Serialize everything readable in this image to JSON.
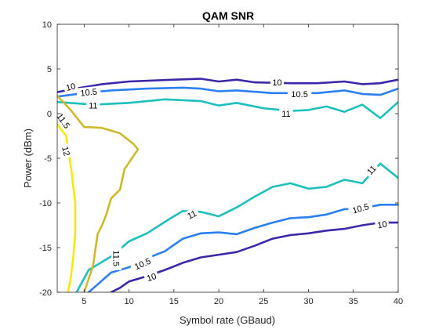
{
  "chart_data": {
    "type": "contour",
    "title": "QAM SNR",
    "xlabel": "Symbol rate (GBaud)",
    "ylabel": "Power (dBm)",
    "xlim": [
      2,
      40
    ],
    "ylim": [
      -20,
      10
    ],
    "xticks": [
      "5",
      "10",
      "15",
      "20",
      "25",
      "30",
      "35",
      "40"
    ],
    "yticks": [
      "-20",
      "-15",
      "-10",
      "-5",
      "0",
      "5",
      "10"
    ],
    "grid": false,
    "box": true,
    "contour_lines": [
      {
        "level": "10",
        "color": "#3e26a8",
        "labels": [
          {
            "x": 3.5,
            "y": 3.0,
            "angle": -14
          },
          {
            "x": 26.5,
            "y": 3.5,
            "angle": 0
          }
        ],
        "points": [
          [
            2.0,
            2.4
          ],
          [
            4.0,
            2.8
          ],
          [
            7.0,
            3.3
          ],
          [
            10.0,
            3.6
          ],
          [
            15.0,
            3.8
          ],
          [
            18.0,
            3.9
          ],
          [
            20.0,
            3.6
          ],
          [
            22.0,
            3.8
          ],
          [
            24.0,
            3.5
          ],
          [
            28.0,
            3.4
          ],
          [
            31.0,
            3.4
          ],
          [
            34.0,
            3.6
          ],
          [
            36.0,
            3.3
          ],
          [
            38.0,
            3.4
          ],
          [
            40.0,
            3.8
          ]
        ]
      },
      {
        "level": "10.5",
        "color": "#2b7ff2",
        "labels": [
          {
            "x": 5.5,
            "y": 2.4,
            "angle": -6
          },
          {
            "x": 29.0,
            "y": 2.2,
            "angle": 0
          }
        ],
        "points": [
          [
            2.0,
            1.9
          ],
          [
            5.0,
            2.3
          ],
          [
            8.0,
            2.6
          ],
          [
            12.0,
            2.8
          ],
          [
            16.0,
            2.9
          ],
          [
            18.0,
            2.8
          ],
          [
            20.0,
            2.5
          ],
          [
            22.0,
            2.6
          ],
          [
            26.0,
            2.3
          ],
          [
            31.0,
            2.3
          ],
          [
            34.0,
            2.6
          ],
          [
            36.0,
            2.2
          ],
          [
            38.0,
            2.1
          ],
          [
            40.0,
            2.8
          ]
        ]
      },
      {
        "level": "11",
        "color": "#1fbfbc",
        "labels": [
          {
            "x": 6.0,
            "y": 0.9,
            "angle": 0
          },
          {
            "x": 27.5,
            "y": 0.0,
            "angle": 0
          }
        ],
        "points": [
          [
            2.0,
            1.3
          ],
          [
            6.0,
            1.0
          ],
          [
            10.0,
            1.2
          ],
          [
            14.0,
            1.6
          ],
          [
            18.0,
            1.4
          ],
          [
            20.0,
            0.9
          ],
          [
            22.0,
            1.2
          ],
          [
            25.0,
            0.6
          ],
          [
            28.0,
            0.3
          ],
          [
            30.0,
            0.4
          ],
          [
            32.0,
            0.8
          ],
          [
            34.0,
            0.2
          ],
          [
            36.0,
            1.0
          ],
          [
            38.0,
            -0.5
          ],
          [
            40.0,
            1.3
          ]
        ]
      },
      {
        "level": "11",
        "color": "#1fbfbc",
        "labels": [
          {
            "x": 17.0,
            "y": -11.3,
            "angle": -27
          },
          {
            "x": 37.0,
            "y": -6.3,
            "angle": -47
          }
        ],
        "points": [
          [
            2.0,
            -24.0
          ],
          [
            5.5,
            -17.5
          ],
          [
            8.0,
            -16.0
          ],
          [
            10.0,
            -14.3
          ],
          [
            12.0,
            -13.4
          ],
          [
            14.5,
            -11.8
          ],
          [
            16.0,
            -10.9
          ],
          [
            18.0,
            -11.0
          ],
          [
            20.0,
            -11.5
          ],
          [
            22.0,
            -10.5
          ],
          [
            24.0,
            -9.3
          ],
          [
            26.0,
            -8.2
          ],
          [
            28.0,
            -7.8
          ],
          [
            30.0,
            -8.4
          ],
          [
            32.0,
            -8.2
          ],
          [
            34.0,
            -7.4
          ],
          [
            36.0,
            -7.8
          ],
          [
            38.0,
            -5.6
          ],
          [
            40.0,
            -7.2
          ]
        ]
      },
      {
        "level": "10.5",
        "color": "#2b7ff2",
        "labels": [
          {
            "x": 11.5,
            "y": -16.8,
            "angle": -24
          },
          {
            "x": 35.8,
            "y": -10.6,
            "angle": -16
          }
        ],
        "points": [
          [
            2.0,
            -25.0
          ],
          [
            5.5,
            -20.0
          ],
          [
            8.0,
            -17.8
          ],
          [
            10.0,
            -17.2
          ],
          [
            12.0,
            -16.2
          ],
          [
            14.0,
            -15.4
          ],
          [
            16.0,
            -14.0
          ],
          [
            18.0,
            -13.4
          ],
          [
            20.0,
            -13.3
          ],
          [
            22.0,
            -13.5
          ],
          [
            24.0,
            -12.8
          ],
          [
            26.0,
            -12.2
          ],
          [
            28.0,
            -11.7
          ],
          [
            30.0,
            -11.6
          ],
          [
            32.0,
            -11.3
          ],
          [
            34.0,
            -10.7
          ],
          [
            36.0,
            -10.6
          ],
          [
            38.0,
            -10.2
          ],
          [
            40.0,
            -10.2
          ]
        ]
      },
      {
        "level": "10",
        "color": "#3e26a8",
        "labels": [
          {
            "x": 12.5,
            "y": -18.3,
            "angle": -18
          },
          {
            "x": 38.2,
            "y": -12.4,
            "angle": -10
          }
        ],
        "points": [
          [
            8.0,
            -20.0
          ],
          [
            9.0,
            -19.5
          ],
          [
            10.0,
            -18.8
          ],
          [
            12.0,
            -18.2
          ],
          [
            14.0,
            -17.5
          ],
          [
            16.0,
            -16.7
          ],
          [
            18.0,
            -16.1
          ],
          [
            20.0,
            -15.8
          ],
          [
            22.0,
            -15.5
          ],
          [
            24.0,
            -14.8
          ],
          [
            26.0,
            -14.0
          ],
          [
            28.0,
            -13.6
          ],
          [
            30.0,
            -13.4
          ],
          [
            32.0,
            -13.1
          ],
          [
            34.0,
            -12.9
          ],
          [
            36.0,
            -12.5
          ],
          [
            38.0,
            -12.2
          ],
          [
            40.0,
            -12.2
          ]
        ]
      },
      {
        "level": "11.5",
        "color": "#cdba2b",
        "labels": [
          {
            "x": 2.7,
            "y": -0.8,
            "angle": 55
          },
          {
            "x": 8.6,
            "y": -16.2,
            "angle": 90
          }
        ],
        "points": [
          [
            2.0,
            2.0
          ],
          [
            3.5,
            0.4
          ],
          [
            5.0,
            -1.5
          ],
          [
            7.0,
            -1.6
          ],
          [
            9.0,
            -2.2
          ],
          [
            10.5,
            -3.4
          ],
          [
            11.0,
            -4.0
          ],
          [
            9.5,
            -6.2
          ],
          [
            9.0,
            -8.5
          ],
          [
            8.0,
            -9.5
          ],
          [
            7.5,
            -11.2
          ],
          [
            7.0,
            -12.5
          ],
          [
            6.5,
            -13.5
          ],
          [
            6.0,
            -17.0
          ],
          [
            5.5,
            -18.5
          ],
          [
            5.0,
            -20.0
          ]
        ]
      },
      {
        "level": "12",
        "color": "#f5e80c",
        "labels": [
          {
            "x": 3.0,
            "y": -4.2,
            "angle": 75
          }
        ],
        "points": [
          [
            2.0,
            -1.2
          ],
          [
            3.0,
            -2.5
          ],
          [
            3.6,
            -6.5
          ],
          [
            4.0,
            -10.0
          ],
          [
            4.0,
            -13.5
          ],
          [
            3.8,
            -16.0
          ],
          [
            3.5,
            -18.5
          ],
          [
            3.2,
            -20.0
          ]
        ]
      }
    ]
  }
}
